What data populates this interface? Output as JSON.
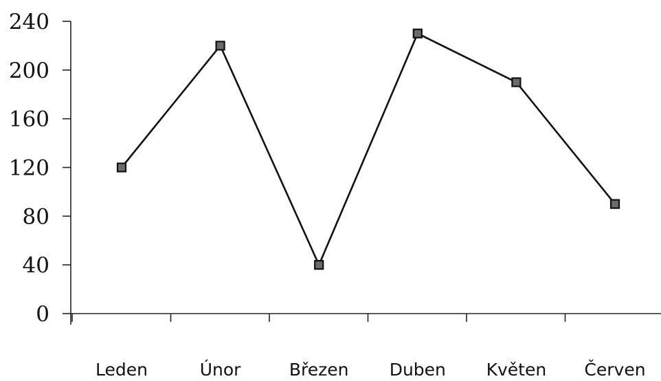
{
  "chart_data": {
    "type": "line",
    "title": "",
    "xlabel": "",
    "ylabel": "",
    "categories": [
      "Leden",
      "Únor",
      "Březen",
      "Duben",
      "Květen",
      "Červen"
    ],
    "series": [
      {
        "values": [
          120,
          220,
          40,
          230,
          190,
          90
        ]
      }
    ],
    "ylim": [
      0,
      240
    ],
    "yticks": [
      "0",
      "40",
      "80",
      "120",
      "160",
      "200",
      "240"
    ],
    "grid": false,
    "legend": "none",
    "marker": "square",
    "line_color": "#111111",
    "marker_fill": "#6b6b6b"
  }
}
